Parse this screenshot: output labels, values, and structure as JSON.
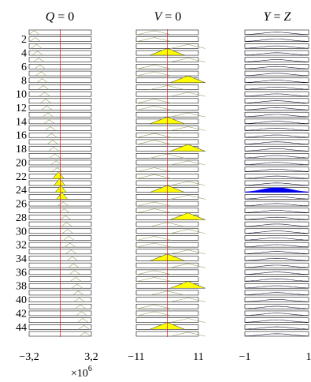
{
  "chart_data": [
    {
      "type": "line",
      "title_var": "Q",
      "title_rel": "=",
      "title_val": "0",
      "x_ticks": [
        "−3,2",
        "3,2"
      ],
      "x_multiplier_base": "×10",
      "x_multiplier_exp": "6",
      "xlim": [
        -3.2,
        3.2
      ],
      "row_labels": [
        "2",
        "4",
        "6",
        "8",
        "10",
        "12",
        "14",
        "16",
        "18",
        "20",
        "22",
        "24",
        "26",
        "28",
        "30",
        "32",
        "34",
        "36",
        "38",
        "40",
        "42",
        "44"
      ],
      "rows": 45,
      "center_line": true,
      "filled_rows": [
        22,
        23,
        24,
        25
      ],
      "outline_color": "#9aa56a",
      "fill_color": "#ffff00",
      "center_color": "#e02020"
    },
    {
      "type": "line",
      "title_var": "V",
      "title_rel": "=",
      "title_val": "0",
      "x_ticks": [
        "−11",
        "11"
      ],
      "xlim": [
        -11,
        11
      ],
      "rows": 45,
      "center_line": true,
      "filled_rows": [
        4,
        8,
        14,
        18,
        24,
        28,
        34,
        38,
        44
      ],
      "outline_color": "#9aa56a",
      "fill_color": "#ffff00",
      "center_color": "#e02020"
    },
    {
      "type": "line",
      "title_var": "Y",
      "title_rel": "=",
      "title_val": "Z",
      "x_ticks": [
        "−1",
        "1"
      ],
      "xlim": [
        -1,
        1
      ],
      "rows": 45,
      "center_line": false,
      "filled_rows": [
        24
      ],
      "outline_color": "#1a1a3a",
      "fill_color": "#0000ee",
      "center_color": "#e02020"
    }
  ]
}
